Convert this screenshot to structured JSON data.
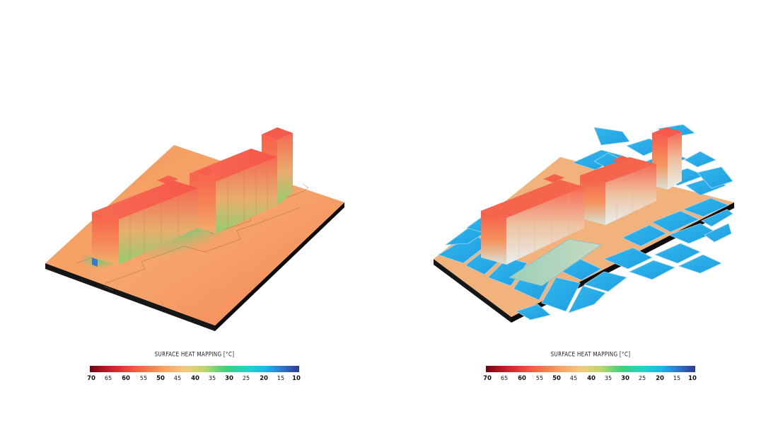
{
  "panels": [
    {
      "id": "left",
      "legend": {
        "title": "SURFACE HEAT MAPPING [°C]",
        "ticks": [
          "70",
          "65",
          "60",
          "55",
          "50",
          "45",
          "40",
          "35",
          "30",
          "25",
          "20",
          "15",
          "10"
        ]
      }
    },
    {
      "id": "right",
      "legend": {
        "title": "SURFACE HEAT MAPPING [°C]",
        "ticks": [
          "70",
          "65",
          "60",
          "55",
          "50",
          "45",
          "40",
          "35",
          "30",
          "25",
          "20",
          "15",
          "10"
        ]
      }
    }
  ],
  "colors": {
    "scale": [
      "#7a0010",
      "#c8202a",
      "#f0523e",
      "#f7864f",
      "#f7b06a",
      "#f6c87f",
      "#c7d870",
      "#4fd07a",
      "#2cc9a0",
      "#23d6e6",
      "#1aa6e6",
      "#2e6dc8",
      "#2b3d8e"
    ],
    "base_dark": "#141414",
    "ground_left": "#f7905a",
    "ground_right": "#f4b07a",
    "tile_blue": "#2fb3ec"
  }
}
